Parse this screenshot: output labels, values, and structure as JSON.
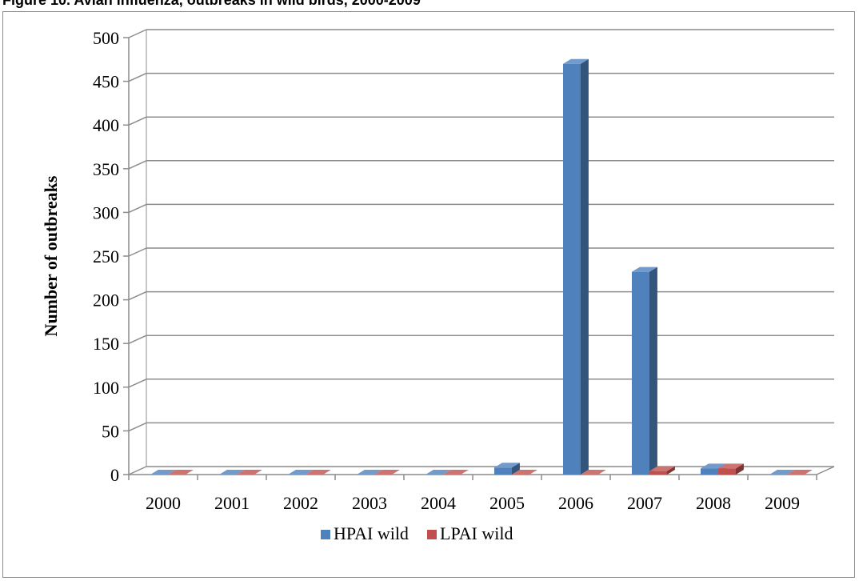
{
  "figure": {
    "title": "Figure 10. Avian influenza, outbreaks in wild birds, 2000-2009"
  },
  "chart_data": {
    "type": "bar",
    "style": "3d-clustered-column",
    "title": "",
    "xlabel": "",
    "ylabel": "Number of outbreaks",
    "categories": [
      "2000",
      "2001",
      "2002",
      "2003",
      "2004",
      "2005",
      "2006",
      "2007",
      "2008",
      "2009"
    ],
    "series": [
      {
        "name": "HPAI wild",
        "color": "#4f81bd",
        "values": [
          0,
          0,
          0,
          0,
          0,
          8,
          470,
          232,
          7,
          0
        ]
      },
      {
        "name": "LPAI wild",
        "color": "#c0504d",
        "values": [
          0,
          0,
          0,
          0,
          0,
          0,
          0,
          4,
          7,
          0
        ]
      }
    ],
    "ylim": [
      0,
      500
    ],
    "yticks": [
      0,
      50,
      100,
      150,
      200,
      250,
      300,
      350,
      400,
      450,
      500
    ],
    "grid": true,
    "legend_position": "bottom"
  }
}
